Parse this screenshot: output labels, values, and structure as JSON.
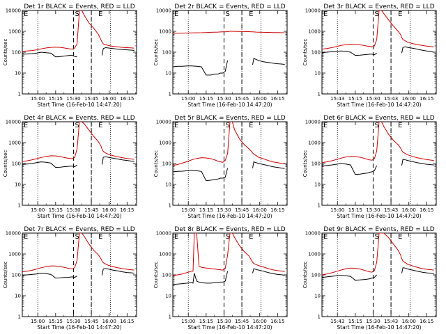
{
  "figure": {
    "legend_text": "BLACK = Events, RED = LLD",
    "series_names": [
      "Events",
      "LLD"
    ],
    "series_colors": {
      "Events": "#000000",
      "LLD": "#cc0000"
    },
    "ylabel": "Counts/sec",
    "xlabel": "Start Time (16-Feb-10 14:47:20)",
    "yscale": "log",
    "ylim": [
      1,
      10000
    ],
    "ytick_labels": [
      "1",
      "10",
      "100",
      "1000",
      "10000"
    ],
    "x_tick_values": [
      "15:00",
      "15:15",
      "15:30",
      "15:45",
      "16:00",
      "16:15"
    ],
    "x_tick_labels": {
      "default": [
        "15:00",
        "15:15",
        "15:30",
        "15:45",
        "16:00",
        "16:15"
      ],
      "panel_3r": [
        "15:43",
        "15:15",
        "15:30",
        "15:43",
        "16:00",
        "16:15"
      ],
      "panel_6r": [
        "15:00",
        "15:15",
        "15:30",
        "15:43",
        "16:00",
        "16:15"
      ],
      "panel_9r": [
        "15:43",
        "15:15",
        "15:30",
        "15:43",
        "16:00",
        "16:15"
      ]
    },
    "xlim_minutes": [
      0,
      96
    ],
    "annotation_letters": {
      "start": "S",
      "end": "E",
      "left": "E"
    }
  },
  "chart_data": [
    {
      "type": "line",
      "panel": "1r",
      "title": "Det 1r BLACK = Events, RED = LLD",
      "x_minutes": [
        0,
        4,
        8,
        12,
        16,
        20,
        24,
        28,
        32,
        35,
        38,
        40,
        42,
        44,
        46,
        48,
        50,
        52,
        56,
        60,
        64,
        66,
        67,
        68,
        70,
        72,
        76,
        80,
        84,
        88,
        92,
        94
      ],
      "series": [
        {
          "name": "Events",
          "values": [
            80,
            82,
            85,
            90,
            100,
            95,
            90,
            60,
            62,
            65,
            68,
            70,
            70,
            62,
            60,
            null,
            null,
            null,
            null,
            null,
            null,
            null,
            70,
            150,
            165,
            160,
            150,
            140,
            135,
            130,
            125,
            120
          ]
        },
        {
          "name": "LLD",
          "values": [
            110,
            115,
            120,
            130,
            145,
            160,
            170,
            175,
            170,
            160,
            150,
            145,
            140,
            160,
            250,
            10000,
            10000,
            6000,
            2500,
            1400,
            700,
            400,
            300,
            250,
            230,
            210,
            190,
            180,
            170,
            165,
            160,
            155
          ]
        }
      ]
    },
    {
      "type": "line",
      "panel": "2r",
      "title": "Det 2r BLACK = Events, RED = LLD",
      "x_minutes": [
        0,
        4,
        8,
        12,
        16,
        20,
        24,
        28,
        32,
        35,
        38,
        40,
        42,
        44,
        46,
        48,
        50,
        52,
        56,
        60,
        64,
        66,
        67,
        68,
        70,
        72,
        76,
        80,
        84,
        88,
        92,
        94
      ],
      "series": [
        {
          "name": "Events",
          "values": [
            20,
            21,
            21,
            22,
            22,
            21,
            20,
            8,
            8,
            9,
            9,
            10,
            10,
            12,
            40,
            null,
            null,
            null,
            null,
            null,
            null,
            null,
            25,
            50,
            45,
            40,
            35,
            32,
            30,
            28,
            27,
            26
          ]
        },
        {
          "name": "LLD",
          "values": [
            800,
            810,
            820,
            830,
            840,
            850,
            860,
            880,
            900,
            910,
            920,
            930,
            940,
            950,
            960,
            1000,
            1000,
            990,
            980,
            970,
            960,
            950,
            940,
            930,
            920,
            910,
            900,
            890,
            880,
            870,
            860,
            850
          ]
        }
      ]
    },
    {
      "type": "line",
      "panel": "3r",
      "title": "Det 3r BLACK = Events, RED = LLD",
      "x_minutes": [
        0,
        4,
        8,
        12,
        16,
        20,
        24,
        28,
        32,
        35,
        38,
        40,
        42,
        44,
        46,
        48,
        50,
        52,
        56,
        60,
        64,
        66,
        67,
        68,
        70,
        72,
        76,
        80,
        84,
        88,
        92,
        94
      ],
      "series": [
        {
          "name": "Events",
          "values": [
            95,
            100,
            105,
            110,
            115,
            110,
            100,
            70,
            72,
            75,
            78,
            80,
            80,
            75,
            90,
            null,
            null,
            null,
            null,
            null,
            null,
            null,
            90,
            170,
            180,
            170,
            155,
            140,
            125,
            115,
            105,
            100
          ]
        },
        {
          "name": "LLD",
          "values": [
            140,
            150,
            165,
            185,
            210,
            230,
            240,
            235,
            225,
            210,
            195,
            190,
            180,
            200,
            400,
            10000,
            10000,
            7000,
            3500,
            1800,
            1000,
            700,
            500,
            400,
            350,
            300,
            260,
            230,
            210,
            195,
            185,
            180
          ]
        }
      ]
    },
    {
      "type": "line",
      "panel": "4r",
      "title": "Det 4r BLACK = Events, RED = LLD",
      "x_minutes": [
        0,
        4,
        8,
        12,
        16,
        20,
        24,
        28,
        32,
        35,
        38,
        40,
        42,
        44,
        46,
        48,
        50,
        52,
        56,
        60,
        64,
        66,
        67,
        68,
        70,
        72,
        76,
        80,
        84,
        88,
        92,
        94
      ],
      "series": [
        {
          "name": "Events",
          "values": [
            90,
            95,
            100,
            110,
            120,
            115,
            105,
            65,
            67,
            70,
            72,
            75,
            75,
            70,
            85,
            null,
            null,
            null,
            null,
            null,
            null,
            null,
            90,
            200,
            210,
            200,
            180,
            165,
            150,
            140,
            130,
            125
          ]
        },
        {
          "name": "LLD",
          "values": [
            125,
            135,
            150,
            170,
            195,
            220,
            235,
            230,
            215,
            195,
            180,
            175,
            170,
            200,
            500,
            10000,
            10000,
            8000,
            4000,
            2000,
            1100,
            700,
            480,
            380,
            320,
            280,
            240,
            210,
            190,
            175,
            165,
            160
          ]
        }
      ]
    },
    {
      "type": "line",
      "panel": "5r",
      "title": "Det 5r BLACK = Events, RED = LLD",
      "x_minutes": [
        0,
        4,
        8,
        12,
        16,
        20,
        24,
        28,
        32,
        35,
        38,
        40,
        42,
        44,
        46,
        48,
        50,
        52,
        56,
        60,
        64,
        66,
        67,
        68,
        70,
        72,
        76,
        80,
        84,
        88,
        92,
        94
      ],
      "series": [
        {
          "name": "Events",
          "values": [
            40,
            42,
            43,
            45,
            47,
            45,
            42,
            15,
            16,
            17,
            18,
            20,
            20,
            22,
            60,
            null,
            null,
            null,
            null,
            null,
            null,
            null,
            60,
            120,
            110,
            100,
            90,
            80,
            70,
            65,
            60,
            58
          ]
        },
        {
          "name": "LLD",
          "values": [
            80,
            90,
            105,
            125,
            150,
            175,
            190,
            185,
            170,
            150,
            130,
            120,
            115,
            140,
            300,
            10000,
            10000,
            4000,
            1500,
            800,
            500,
            380,
            320,
            280,
            240,
            200,
            170,
            140,
            120,
            110,
            100,
            95
          ]
        }
      ]
    },
    {
      "type": "line",
      "panel": "6r",
      "title": "Det 6r BLACK = Events, RED = LLD",
      "x_minutes": [
        0,
        4,
        8,
        12,
        16,
        20,
        24,
        28,
        32,
        35,
        38,
        40,
        42,
        44,
        46,
        48,
        50,
        52,
        56,
        60,
        64,
        66,
        67,
        68,
        70,
        72,
        76,
        80,
        84,
        88,
        92,
        94
      ],
      "series": [
        {
          "name": "Events",
          "values": [
            75,
            80,
            85,
            92,
            100,
            95,
            85,
            30,
            31,
            33,
            35,
            38,
            40,
            45,
            80,
            null,
            null,
            null,
            null,
            null,
            null,
            null,
            80,
            160,
            150,
            140,
            125,
            110,
            100,
            92,
            88,
            85
          ]
        },
        {
          "name": "LLD",
          "values": [
            110,
            120,
            135,
            155,
            180,
            205,
            220,
            215,
            200,
            180,
            160,
            150,
            145,
            170,
            400,
            10000,
            10000,
            6000,
            2500,
            1300,
            800,
            550,
            420,
            350,
            300,
            260,
            220,
            190,
            170,
            155,
            145,
            140
          ]
        }
      ]
    },
    {
      "type": "line",
      "panel": "7r",
      "title": "Det 7r BLACK = Events, RED = LLD",
      "x_minutes": [
        0,
        4,
        8,
        12,
        16,
        20,
        24,
        28,
        32,
        35,
        38,
        40,
        42,
        44,
        46,
        48,
        50,
        52,
        56,
        60,
        64,
        66,
        67,
        68,
        70,
        72,
        76,
        80,
        84,
        88,
        92,
        94
      ],
      "series": [
        {
          "name": "Events",
          "values": [
            95,
            100,
            105,
            110,
            120,
            115,
            105,
            70,
            72,
            74,
            76,
            78,
            80,
            75,
            90,
            null,
            null,
            null,
            null,
            null,
            null,
            null,
            95,
            190,
            200,
            190,
            170,
            155,
            140,
            130,
            125,
            120
          ]
        },
        {
          "name": "LLD",
          "values": [
            140,
            150,
            165,
            190,
            220,
            250,
            270,
            265,
            250,
            230,
            210,
            200,
            190,
            220,
            500,
            10000,
            10000,
            7000,
            3000,
            1500,
            900,
            600,
            450,
            380,
            330,
            290,
            250,
            220,
            200,
            185,
            175,
            170
          ]
        }
      ]
    },
    {
      "type": "line",
      "panel": "8r",
      "title": "Det 8r BLACK = Events, RED = LLD",
      "x_minutes": [
        0,
        4,
        8,
        12,
        16,
        17,
        18,
        20,
        22,
        24,
        28,
        32,
        35,
        38,
        40,
        42,
        44,
        46,
        48,
        50,
        52,
        56,
        60,
        64,
        66,
        67,
        68,
        70,
        72,
        76,
        80,
        84,
        88,
        92,
        94
      ],
      "series": [
        {
          "name": "Events",
          "values": [
            35,
            36,
            38,
            40,
            42,
            40,
            120,
            50,
            45,
            42,
            40,
            40,
            42,
            44,
            45,
            45,
            50,
            150,
            null,
            null,
            null,
            null,
            null,
            null,
            null,
            120,
            200,
            180,
            170,
            150,
            130,
            115,
            105,
            100,
            95
          ]
        },
        {
          "name": "LLD",
          "values": [
            90,
            100,
            110,
            130,
            150,
            150,
            10000,
            10000,
            260,
            230,
            210,
            200,
            190,
            180,
            175,
            170,
            200,
            900,
            10000,
            10000,
            6000,
            2500,
            1300,
            800,
            500,
            400,
            350,
            310,
            280,
            240,
            200,
            175,
            160,
            150,
            145
          ]
        }
      ]
    },
    {
      "type": "line",
      "panel": "9r",
      "title": "Det 9r BLACK = Events, RED = LLD",
      "x_minutes": [
        0,
        4,
        8,
        12,
        16,
        20,
        24,
        28,
        32,
        35,
        38,
        40,
        42,
        44,
        46,
        48,
        50,
        52,
        56,
        60,
        64,
        66,
        67,
        68,
        70,
        72,
        76,
        80,
        84,
        88,
        92,
        94
      ],
      "series": [
        {
          "name": "Events",
          "values": [
            75,
            80,
            85,
            90,
            95,
            90,
            85,
            55,
            57,
            60,
            62,
            65,
            70,
            75,
            100,
            null,
            null,
            null,
            null,
            null,
            null,
            null,
            120,
            220,
            210,
            190,
            170,
            150,
            135,
            125,
            118,
            115
          ]
        },
        {
          "name": "LLD",
          "values": [
            100,
            110,
            125,
            145,
            170,
            195,
            210,
            205,
            190,
            170,
            150,
            140,
            135,
            160,
            400,
            10000,
            10000,
            10000,
            6000,
            3000,
            1500,
            900,
            600,
            450,
            380,
            320,
            270,
            230,
            200,
            185,
            175,
            170
          ]
        }
      ]
    }
  ]
}
